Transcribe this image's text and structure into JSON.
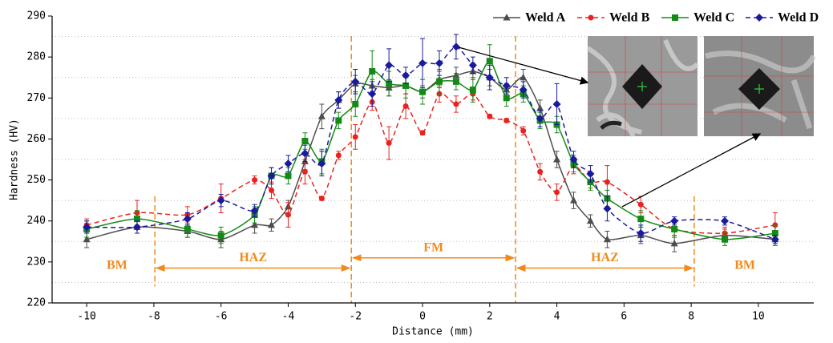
{
  "chart_data": {
    "type": "line",
    "x_label": "Distance (mm)",
    "y_label": "Hardness (HV)",
    "xlim": [
      -11.03,
      11.65
    ],
    "ylim": [
      220,
      290
    ],
    "xticks": [
      -10,
      -8,
      -6,
      -4,
      -2,
      0,
      2,
      4,
      6,
      8,
      10
    ],
    "yticks": [
      220,
      230,
      240,
      250,
      260,
      270,
      280,
      290
    ],
    "grid_lines": [
      225,
      235,
      245,
      255,
      265,
      275,
      285
    ],
    "legend": "top-right",
    "x": [
      -10,
      -8.5,
      -7,
      -6,
      -5,
      -4.5,
      -4,
      -3.5,
      -3,
      -2.5,
      -2,
      -1.5,
      -1,
      -0.5,
      0,
      0.5,
      1,
      1.5,
      2,
      2.5,
      3,
      3.5,
      4,
      4.5,
      5,
      5.5,
      6.5,
      7.5,
      9,
      10.5
    ],
    "series": [
      {
        "name": "Weld A",
        "color": "#4d4d4d",
        "marker": "triangle",
        "dash": false,
        "values": [
          235.5,
          238.5,
          237.5,
          235.5,
          239,
          239,
          243.5,
          254.5,
          265.5,
          269.5,
          273.5,
          273,
          272.5,
          273,
          271.5,
          274.5,
          275.5,
          276.5,
          275,
          272,
          275,
          267.5,
          255,
          245,
          240,
          235.5,
          236.5,
          234.5,
          236.5,
          235.5
        ],
        "errors": [
          2,
          1.5,
          1.5,
          2,
          2,
          1.5,
          1.5,
          2,
          3,
          2,
          2,
          1.5,
          2,
          2,
          1.5,
          2,
          2,
          2,
          2,
          1.5,
          2,
          2,
          2,
          2,
          1.5,
          2,
          2,
          2,
          1.5,
          1.5
        ]
      },
      {
        "name": "Weld B",
        "color": "#e8231f",
        "marker": "circle",
        "dash": true,
        "values": [
          239,
          242,
          241.5,
          245.5,
          250,
          247.5,
          241.5,
          252,
          245.5,
          256,
          260.5,
          269,
          259,
          268,
          261.5,
          271,
          268.5,
          271,
          265.5,
          264.5,
          262,
          252,
          247,
          253.5,
          249.5,
          249.5,
          244,
          238,
          237,
          239
        ],
        "errors": [
          1.5,
          3,
          2,
          3.5,
          1,
          2,
          3,
          3,
          0.5,
          1,
          3,
          2,
          4,
          3,
          0.5,
          2,
          2,
          1.5,
          0.5,
          0.5,
          1,
          2,
          2,
          2,
          1.5,
          4,
          2,
          1.5,
          1.5,
          3
        ]
      },
      {
        "name": "Weld C",
        "color": "#138a16",
        "marker": "square",
        "dash": false,
        "values": [
          238,
          240.5,
          238,
          236.5,
          241.5,
          251,
          251,
          259.5,
          254.5,
          264.5,
          268.5,
          276.5,
          273.5,
          273,
          271.5,
          274,
          274,
          272,
          279,
          270,
          271,
          264.5,
          263.5,
          254,
          249.5,
          245.5,
          240.5,
          238,
          235.5,
          237
        ],
        "errors": [
          2,
          2,
          2,
          2,
          2,
          2,
          2,
          2,
          3,
          2,
          3,
          5,
          3,
          3,
          3,
          3,
          2,
          3,
          4,
          2,
          2,
          2,
          2,
          2,
          2,
          2,
          2,
          2,
          1.5,
          2
        ]
      },
      {
        "name": "Weld D",
        "color": "#1a1a9e",
        "marker": "diamond",
        "dash": true,
        "values": [
          238.5,
          238.5,
          240.5,
          245,
          242.5,
          251,
          254,
          256.5,
          254,
          269.5,
          274,
          271,
          278,
          275.5,
          278.5,
          278.5,
          282.5,
          278,
          275,
          273,
          272,
          265,
          268.5,
          255,
          251.5,
          243,
          237,
          240,
          240,
          235.5
        ],
        "errors": [
          1.5,
          1.5,
          1.5,
          1.5,
          1.5,
          2,
          2,
          2,
          3,
          2,
          3,
          3,
          4,
          2,
          6,
          3,
          3,
          2,
          3,
          2,
          2,
          2,
          5,
          2,
          2,
          3,
          2,
          1,
          1,
          1
        ]
      }
    ],
    "boundaries": [
      {
        "x": -7.97,
        "full": false
      },
      {
        "x": -2.12,
        "full": true
      },
      {
        "x": 2.77,
        "full": true
      },
      {
        "x": 8.09,
        "full": false
      }
    ],
    "regions": [
      {
        "label": "BM",
        "x": -9.1
      },
      {
        "label": "HAZ",
        "from": -7.97,
        "to": -2.12
      },
      {
        "label": "FM",
        "from": -2.12,
        "to": 2.77
      },
      {
        "label": "HAZ",
        "from": 2.77,
        "to": 8.09
      },
      {
        "label": "BM",
        "x": 9.6
      }
    ]
  }
}
